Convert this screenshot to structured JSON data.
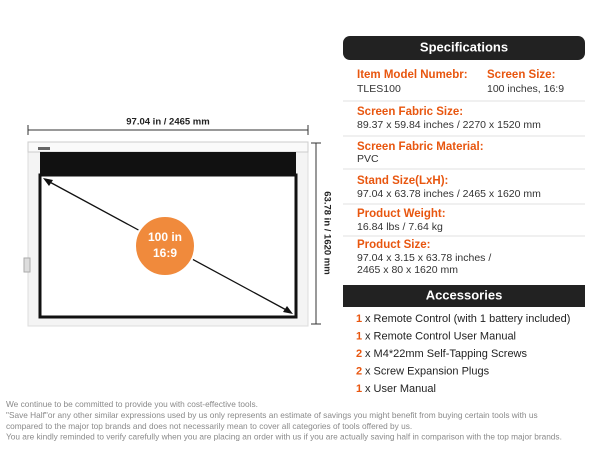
{
  "diagram": {
    "width_label": "97.04 in / 2465 mm",
    "height_label": "63.78 in / 1620 mm",
    "badge_size": "100 in",
    "badge_ratio": "16:9"
  },
  "specifications": {
    "title": "Specifications",
    "rows": [
      {
        "label": "Item Model Numebr:",
        "value": "TLES100",
        "label2": "Screen Size:",
        "value2": "100 inches, 16:9"
      },
      {
        "label": "Screen Fabric Size:",
        "value": "89.37 x 59.84 inches / 2270 x 1520 mm"
      },
      {
        "label": "Screen Fabric Material:",
        "value": "PVC"
      },
      {
        "label": "Stand Size(LxH):",
        "value": "97.04 x 63.78 inches / 2465 x 1620 mm"
      },
      {
        "label": "Product Weight:",
        "value": "16.84 lbs / 7.64 kg"
      },
      {
        "label": "Product Size:",
        "value": "97.04 x 3.15 x 63.78 inches /",
        "value2": "2465 x 80 x 1620 mm"
      }
    ]
  },
  "accessories": {
    "title": "Accessories",
    "items": [
      {
        "qty": "1",
        "text": "x Remote Control (with 1 battery included)"
      },
      {
        "qty": "1",
        "text": "x Remote Control User Manual"
      },
      {
        "qty": "2",
        "text": "x M4*22mm Self-Tapping Screws"
      },
      {
        "qty": "2",
        "text": "x Screw Expansion Plugs"
      },
      {
        "qty": "1",
        "text": "x User Manual"
      }
    ]
  },
  "disclaimer": [
    "We continue to be committed to provide you with cost-effective tools.",
    "\"Save Half\"or any other similar expressions used by us only represents an estimate of savings you might benefit from buying certain tools with us",
    "compared to the major top brands and does not necessarily mean to cover all categories of tools offered by us.",
    "You are kindly reminded to verify carefully when you are placing an order with us if you are actually saving half in comparison with the top major brands."
  ]
}
